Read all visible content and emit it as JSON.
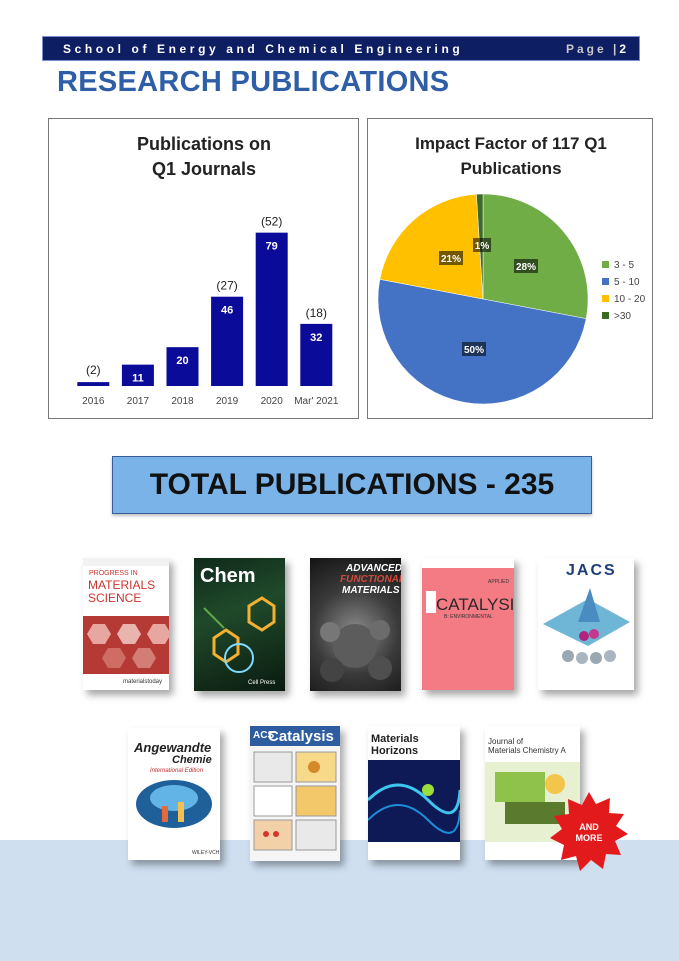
{
  "header": {
    "school": "School of Energy and Chemical Engineering",
    "page_label": "Page |",
    "page_number": "2"
  },
  "title": "RESEARCH PUBLICATIONS",
  "chart_data": [
    {
      "type": "bar",
      "title": "Publications on Q1 Journals",
      "title_lines": [
        "Publications on",
        "Q1 Journals"
      ],
      "categories": [
        "2016",
        "2017",
        "2018",
        "2019",
        "2020",
        "Mar' 2021"
      ],
      "values": [
        2,
        11,
        20,
        46,
        79,
        32
      ],
      "value_labels": [
        "(2)",
        "11",
        "20",
        "46",
        "79",
        "32"
      ],
      "annotations": [
        "",
        "",
        "",
        "(27)",
        "(52)",
        "(18)"
      ],
      "ylim": [
        0,
        85
      ],
      "grid": false,
      "bar_color": "#0b0b9a",
      "xlabel": "",
      "ylabel": ""
    },
    {
      "type": "pie",
      "title": "Impact Factor of 117 Q1 Publications",
      "title_lines": [
        "Impact Factor of 117 Q1",
        "Publications"
      ],
      "labels": [
        "3 - 5",
        "5 - 10",
        "10 - 20",
        ">30"
      ],
      "values": [
        28,
        50,
        21,
        1
      ],
      "value_labels": [
        "28%",
        "50%",
        "21%",
        "1%"
      ],
      "colors": [
        "#70ad47",
        "#4472c4",
        "#ffc000",
        "#3a6b25"
      ],
      "legend_position": "right"
    }
  ],
  "total_publications": "TOTAL PUBLICATIONS - 235",
  "journal_covers": [
    {
      "name": "Progress in Materials Science",
      "lines": [
        "PROGRESS IN",
        "MATERIALS",
        "SCIENCE"
      ],
      "footer": "materialstoday"
    },
    {
      "name": "Chem",
      "lines": [
        "Chem"
      ],
      "footer": "Cell Press"
    },
    {
      "name": "Advanced Functional Materials",
      "lines": [
        "ADVANCED",
        "FUNCTIONAL",
        "MATERIALS"
      ]
    },
    {
      "name": "Applied Catalysis B: Environmental",
      "lines": [
        "APPLIED",
        "CATALYSIS",
        "B: ENVIRONMENTAL"
      ]
    },
    {
      "name": "JACS",
      "lines": [
        "JACS"
      ]
    },
    {
      "name": "Angewandte Chemie",
      "lines": [
        "Angewandte",
        "Chemie",
        "International Edition"
      ],
      "footer": "WILEY-VCH"
    },
    {
      "name": "ACS Catalysis",
      "lines": [
        "ACS",
        "Catalysis"
      ]
    },
    {
      "name": "Materials Horizons",
      "lines": [
        "Materials",
        "Horizons"
      ]
    },
    {
      "name": "Journal of Materials Chemistry A",
      "lines": [
        "Journal of",
        "Materials Chemistry A"
      ]
    }
  ],
  "and_more": [
    "AND",
    "MORE"
  ]
}
